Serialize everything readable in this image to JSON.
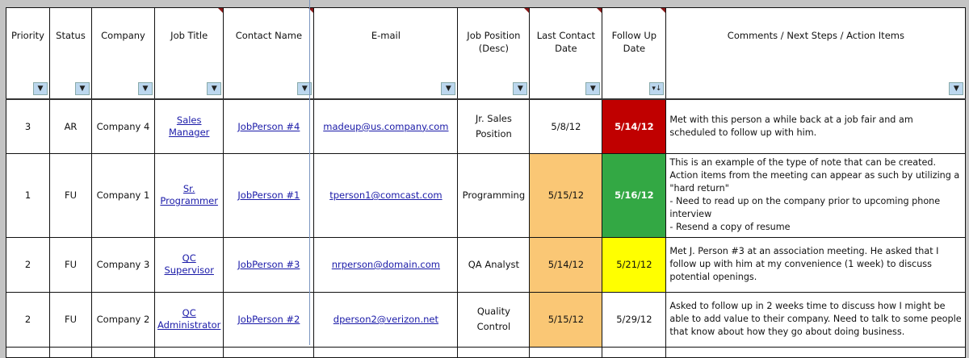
{
  "columns": [
    "Priority",
    "Status",
    "Company",
    "Job Title",
    "Contact Name",
    "E-mail",
    "Job Position (Desc)",
    "Last Contact Date",
    "Follow Up Date",
    "Comments / Next Steps / Action Items"
  ],
  "filter_icons": {
    "default": "dropdown-arrow-icon",
    "follow_up": "sort-descending-icon",
    "default_glyph": "▼",
    "follow_up_glyph": "▾↓"
  },
  "colors": {
    "overdue": "#c00000",
    "today": "#33a844",
    "upcoming": "#ffff00",
    "recent_contact": "#fac775"
  },
  "rows": [
    {
      "priority": "3",
      "status": "AR",
      "company": "Company 4",
      "job_title": "Sales Manager",
      "contact": "JobPerson #4",
      "email": "madeup@us.company.com",
      "position": "Jr. Sales Position",
      "last_contact": "5/8/12",
      "follow_up": "5/14/12",
      "comments": "Met with this person a while back at a job fair and am scheduled to follow up with him."
    },
    {
      "priority": "1",
      "status": "FU",
      "company": "Company 1",
      "job_title": "Sr. Programmer",
      "contact": "JobPerson #1",
      "email": "tperson1@comcast.com",
      "position": "Programming",
      "last_contact": "5/15/12",
      "follow_up": "5/16/12",
      "comments": "This is an example of the type of note that can be created.  Action items from the meeting can appear as such by utilizing a \"hard return\"\n- Need to read up on the company prior to upcoming phone interview\n- Resend a copy of resume"
    },
    {
      "priority": "2",
      "status": "FU",
      "company": "Company 3",
      "job_title": "QC Supervisor",
      "contact": "JobPerson #3",
      "email": "nrperson@domain.com",
      "position": "QA Analyst",
      "last_contact": "5/14/12",
      "follow_up": "5/21/12",
      "comments": "Met J. Person #3 at an association meeting. He asked that I follow up with him at my convenience (1 week) to discuss potential openings."
    },
    {
      "priority": "2",
      "status": "FU",
      "company": "Company 2",
      "job_title": "QC Administrator",
      "contact": "JobPerson #2",
      "email": "dperson2@verizon.net",
      "position": "Quality Control",
      "last_contact": "5/15/12",
      "follow_up": "5/29/12",
      "comments": "Asked to follow up in 2 weeks time to discuss how I might be able to add value to their company. Need to talk to some people that know about how they go about doing business."
    }
  ]
}
